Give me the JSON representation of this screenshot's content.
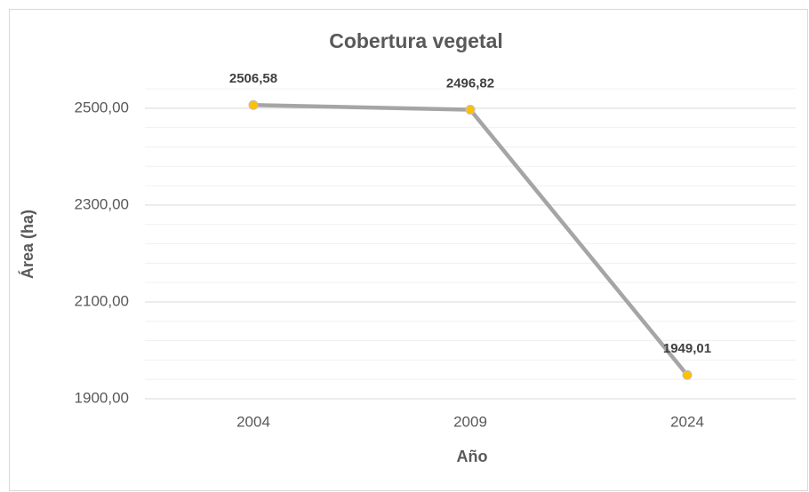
{
  "chart_data": {
    "type": "line",
    "title": "Cobertura vegetal",
    "x_label": "Año",
    "y_label": "Área (ha)",
    "categories": [
      "2004",
      "2009",
      "2024"
    ],
    "series": [
      {
        "name": "Cobertura vegetal",
        "color": "#a5a5a5",
        "marker_color": "#ffc000",
        "values": [
          2506.58,
          2496.82,
          1949.01
        ],
        "value_labels": [
          "2506,58",
          "2496,82",
          "1949,01"
        ]
      }
    ],
    "ylim": [
      1900,
      2540
    ],
    "yticks": [
      {
        "value": 1900,
        "label": "1900,00"
      },
      {
        "value": 2100,
        "label": "2100,00"
      },
      {
        "value": 2300,
        "label": "2300,00"
      },
      {
        "value": 2500,
        "label": "2500,00"
      }
    ],
    "minor_yticks": [
      1940,
      1980,
      2020,
      2060,
      2140,
      2180,
      2220,
      2260,
      2340,
      2380,
      2420,
      2460,
      2540
    ],
    "grid": true
  }
}
